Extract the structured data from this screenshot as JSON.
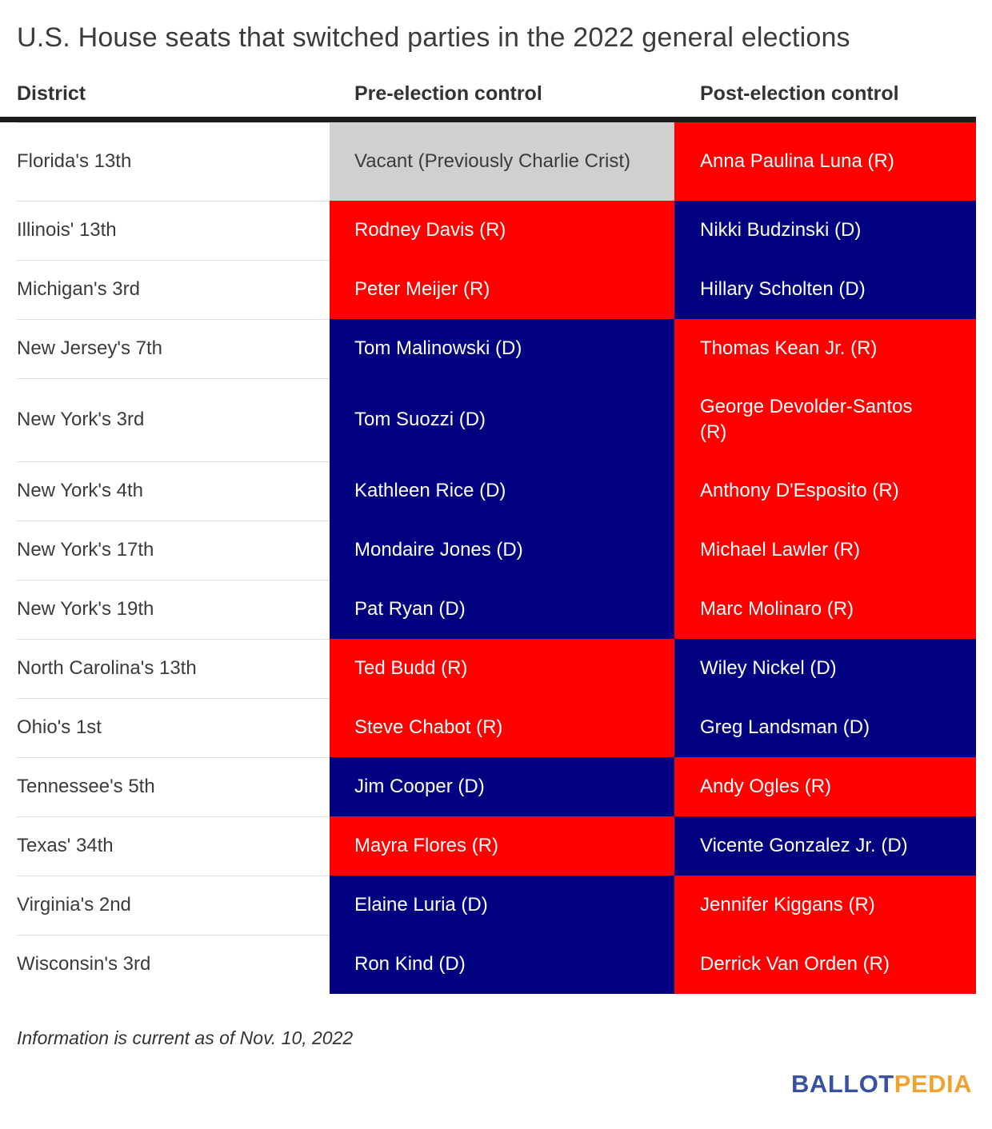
{
  "chart_data": {
    "type": "table",
    "title": "U.S. House seats that switched parties in the 2022 general elections",
    "columns": [
      "District",
      "Pre-election control",
      "Post-election control"
    ],
    "rows": [
      {
        "district": "Florida's 13th",
        "pre": {
          "label": "Vacant (Previously Charlie Crist)",
          "party": "vacant"
        },
        "post": {
          "label": "Anna Paulina Luna (R)",
          "party": "R"
        }
      },
      {
        "district": "Illinois' 13th",
        "pre": {
          "label": "Rodney Davis (R)",
          "party": "R"
        },
        "post": {
          "label": "Nikki Budzinski (D)",
          "party": "D"
        }
      },
      {
        "district": "Michigan's 3rd",
        "pre": {
          "label": "Peter Meijer (R)",
          "party": "R"
        },
        "post": {
          "label": "Hillary Scholten (D)",
          "party": "D"
        }
      },
      {
        "district": "New Jersey's 7th",
        "pre": {
          "label": "Tom Malinowski (D)",
          "party": "D"
        },
        "post": {
          "label": "Thomas Kean Jr. (R)",
          "party": "R"
        }
      },
      {
        "district": "New York's 3rd",
        "pre": {
          "label": "Tom Suozzi (D)",
          "party": "D"
        },
        "post": {
          "label": "George Devolder-Santos (R)",
          "party": "R"
        }
      },
      {
        "district": "New York's 4th",
        "pre": {
          "label": "Kathleen Rice (D)",
          "party": "D"
        },
        "post": {
          "label": "Anthony D'Esposito (R)",
          "party": "R"
        }
      },
      {
        "district": "New York's 17th",
        "pre": {
          "label": "Mondaire Jones (D)",
          "party": "D"
        },
        "post": {
          "label": "Michael Lawler (R)",
          "party": "R"
        }
      },
      {
        "district": "New York's 19th",
        "pre": {
          "label": "Pat Ryan (D)",
          "party": "D"
        },
        "post": {
          "label": "Marc Molinaro (R)",
          "party": "R"
        }
      },
      {
        "district": "North Carolina's 13th",
        "pre": {
          "label": "Ted Budd (R)",
          "party": "R"
        },
        "post": {
          "label": "Wiley Nickel (D)",
          "party": "D"
        }
      },
      {
        "district": "Ohio's 1st",
        "pre": {
          "label": "Steve Chabot (R)",
          "party": "R"
        },
        "post": {
          "label": "Greg Landsman (D)",
          "party": "D"
        }
      },
      {
        "district": "Tennessee's 5th",
        "pre": {
          "label": "Jim Cooper (D)",
          "party": "D"
        },
        "post": {
          "label": "Andy Ogles (R)",
          "party": "R"
        }
      },
      {
        "district": "Texas' 34th",
        "pre": {
          "label": "Mayra Flores (R)",
          "party": "R"
        },
        "post": {
          "label": "Vicente Gonzalez Jr. (D)",
          "party": "D"
        }
      },
      {
        "district": "Virginia's 2nd",
        "pre": {
          "label": "Elaine Luria (D)",
          "party": "D"
        },
        "post": {
          "label": "Jennifer Kiggans (R)",
          "party": "R"
        }
      },
      {
        "district": "Wisconsin's 3rd",
        "pre": {
          "label": "Ron Kind (D)",
          "party": "D"
        },
        "post": {
          "label": "Derrick Van Orden (R)",
          "party": "R"
        }
      }
    ],
    "legend": "none",
    "colors": {
      "republican": "#fe0000",
      "democrat": "#020280",
      "vacant": "#d0d0d0",
      "header_rule": "#1c1c1c"
    }
  },
  "footnote": "Information is current as of Nov. 10, 2022",
  "logo": {
    "part1": "BALLOT",
    "part2": "PEDIA",
    "blue": "#3a51a3",
    "orange": "#f0a231"
  }
}
